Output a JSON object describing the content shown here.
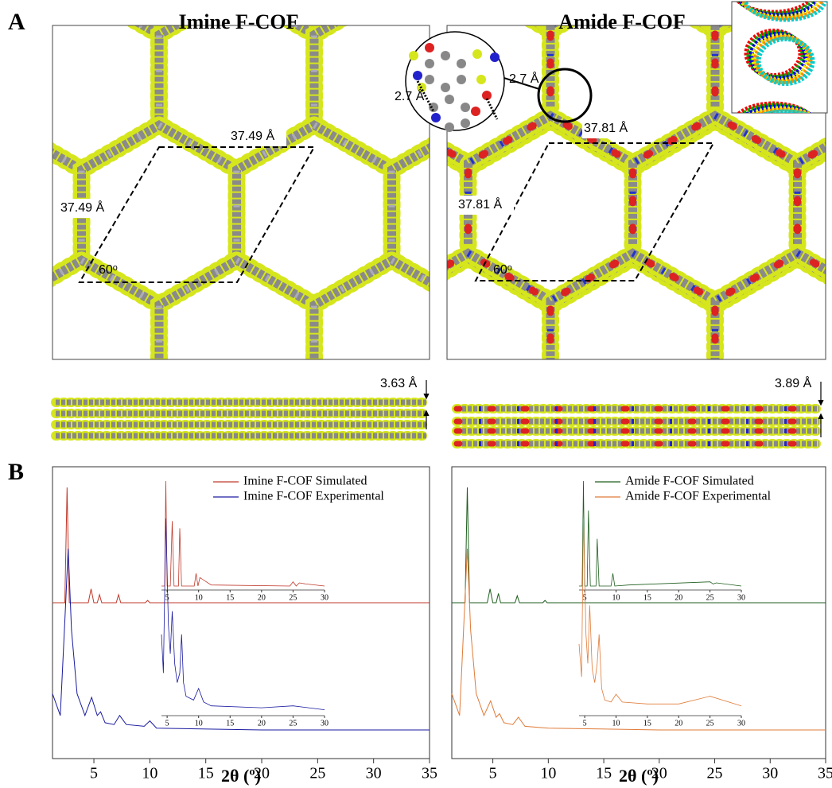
{
  "panel_labels": [
    "A",
    "B"
  ],
  "structures": [
    {
      "title": "Imine F-COF",
      "cell_a": "37.49 Å",
      "cell_b": "37.49 Å",
      "angle": "60ᵒ",
      "spacing": "3.63 Å"
    },
    {
      "title": "Amide F-COF",
      "cell_a": "37.81 Å",
      "cell_b": "37.81 Å",
      "angle": "60ᵒ",
      "spacing": "3.89 Å",
      "hbond": [
        "2.7 Å",
        "2.7 Å"
      ]
    }
  ],
  "chart_data": [
    {
      "type": "line",
      "x_label": "2θ (º)",
      "xlim": [
        1.3,
        35
      ],
      "xticks": [
        5,
        10,
        15,
        20,
        25,
        30,
        35
      ],
      "ylim": [
        0,
        100
      ],
      "series": [
        {
          "name": "Imine F-COF Simulated",
          "color": "#c0392b",
          "x": [
            1.3,
            2.4,
            2.6,
            2.8,
            4.5,
            4.75,
            5.0,
            5.3,
            5.5,
            5.7,
            7.0,
            7.2,
            7.4,
            9.6,
            9.8,
            10.0,
            25,
            35
          ],
          "values": [
            0,
            0,
            100,
            0,
            0,
            12,
            0,
            0,
            7,
            0,
            0,
            7,
            0,
            0,
            2,
            0,
            0,
            0
          ]
        },
        {
          "name": "Imine F-COF Experimental",
          "color": "#1a1aa0",
          "x": [
            1.3,
            2.0,
            2.4,
            2.7,
            3.0,
            3.5,
            4.2,
            4.8,
            5.3,
            5.6,
            6.0,
            6.8,
            7.3,
            7.9,
            9.5,
            10.0,
            10.6,
            20,
            35
          ],
          "values": [
            20,
            8,
            60,
            100,
            55,
            20,
            8,
            18,
            8,
            10,
            4,
            3,
            8,
            3,
            2,
            5,
            1,
            0,
            0
          ]
        }
      ]
    },
    {
      "type": "line",
      "x_label": "2θ (º)",
      "xlim": [
        1.3,
        35
      ],
      "xticks": [
        5,
        10,
        15,
        20,
        25,
        30,
        35
      ],
      "ylim": [
        0,
        100
      ],
      "series": [
        {
          "name": "Amide F-COF Simulated",
          "color": "#1e5e1e",
          "x": [
            1.3,
            2.5,
            2.7,
            2.9,
            4.5,
            4.75,
            5.0,
            5.3,
            5.5,
            5.7,
            7.0,
            7.2,
            7.4,
            9.5,
            9.7,
            9.9,
            35
          ],
          "values": [
            0,
            0,
            100,
            0,
            0,
            12,
            0,
            0,
            8,
            0,
            0,
            6,
            0,
            0,
            2,
            0,
            0
          ]
        },
        {
          "name": "Amide F-COF Experimental",
          "color": "#e07b39",
          "x": [
            1.3,
            2.0,
            2.4,
            2.7,
            3.0,
            3.5,
            4.2,
            4.8,
            5.3,
            5.6,
            6.0,
            6.8,
            7.3,
            7.9,
            10,
            20,
            35
          ],
          "values": [
            20,
            8,
            60,
            100,
            55,
            20,
            8,
            16,
            7,
            9,
            4,
            3,
            7,
            2,
            1,
            0,
            0
          ]
        }
      ]
    },
    {
      "type": "line",
      "xlim": [
        4.1,
        30
      ],
      "xticks": [
        5,
        10,
        15,
        20,
        25,
        30
      ],
      "ylim": [
        0,
        100
      ],
      "series": [
        {
          "color": "#c0392b",
          "x": [
            4.1,
            4.6,
            4.8,
            5.0,
            5.5,
            5.8,
            6.1,
            6.8,
            7.0,
            7.3,
            9.3,
            9.6,
            9.9,
            10.2,
            12,
            24.5,
            25,
            25.5,
            26,
            27,
            30
          ],
          "values": [
            0,
            0,
            100,
            0,
            0,
            62,
            0,
            0,
            55,
            0,
            0,
            12,
            0,
            8,
            1,
            0,
            4,
            0,
            3,
            2,
            0
          ]
        }
      ]
    },
    {
      "type": "line",
      "xlim": [
        4.1,
        30
      ],
      "xticks": [
        5,
        10,
        15,
        20,
        25,
        30
      ],
      "ylim": [
        0,
        100
      ],
      "series": [
        {
          "color": "#1a1aa0",
          "x": [
            4.1,
            4.4,
            4.8,
            5.2,
            5.5,
            5.8,
            6.2,
            6.6,
            7.0,
            7.3,
            7.6,
            8.0,
            9.2,
            10.0,
            10.8,
            12,
            20,
            25,
            30
          ],
          "values": [
            40,
            20,
            100,
            45,
            30,
            52,
            25,
            15,
            20,
            40,
            15,
            8,
            6,
            12,
            5,
            3,
            2,
            3,
            1
          ]
        }
      ]
    },
    {
      "type": "line",
      "xlim": [
        4.1,
        30
      ],
      "xticks": [
        5,
        10,
        15,
        20,
        25,
        30
      ],
      "ylim": [
        0,
        100
      ],
      "series": [
        {
          "color": "#1e5e1e",
          "x": [
            4.1,
            4.6,
            4.8,
            5.0,
            5.4,
            5.6,
            5.9,
            6.8,
            7.0,
            7.3,
            9.2,
            9.5,
            9.8,
            12,
            25,
            25.5,
            26,
            30
          ],
          "values": [
            0,
            0,
            100,
            0,
            0,
            72,
            0,
            0,
            45,
            0,
            0,
            12,
            0,
            1,
            4,
            2,
            3,
            0
          ]
        }
      ]
    },
    {
      "type": "line",
      "xlim": [
        4.1,
        30
      ],
      "xticks": [
        5,
        10,
        15,
        20,
        25,
        30
      ],
      "ylim": [
        0,
        100
      ],
      "series": [
        {
          "color": "#e07b39",
          "x": [
            4.1,
            4.5,
            4.8,
            5.2,
            5.5,
            5.8,
            6.2,
            6.6,
            7.0,
            7.3,
            7.7,
            8.2,
            9.2,
            10.0,
            11,
            15,
            20,
            25,
            30
          ],
          "values": [
            35,
            18,
            100,
            40,
            25,
            55,
            22,
            15,
            25,
            40,
            12,
            6,
            5,
            9,
            5,
            4,
            4,
            8,
            3
          ]
        }
      ]
    }
  ]
}
